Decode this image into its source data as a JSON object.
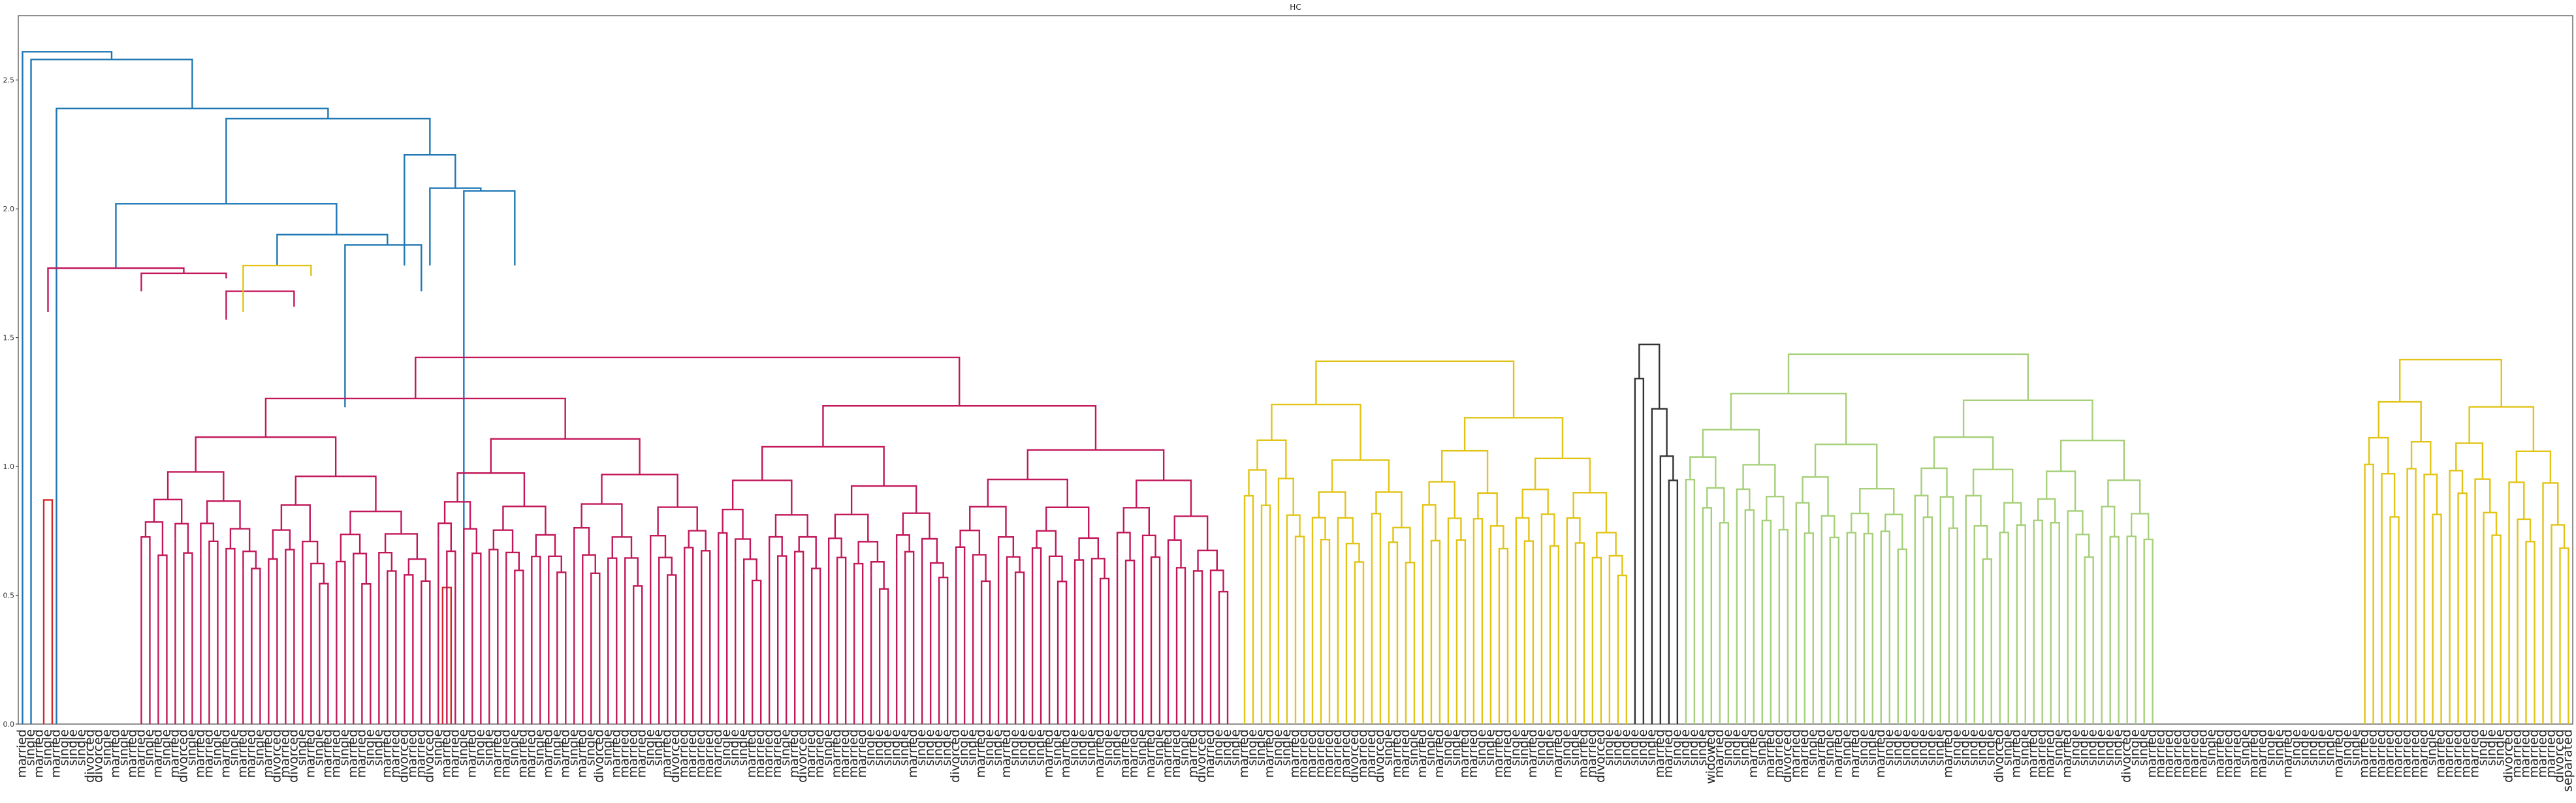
{
  "chart_data": {
    "type": "dendrogram",
    "title": "HC",
    "xlabel": "",
    "ylabel": "",
    "ylim": [
      0,
      2.75
    ],
    "yticks": [
      "0.0",
      "0.5",
      "1.0",
      "1.5",
      "2.0",
      "2.5"
    ],
    "grid": false,
    "cluster_colors": {
      "above_threshold": "#1f77b4",
      "red": "#d62728",
      "magenta": "#c2185b",
      "yellow": "#e2c415",
      "black": "#333333",
      "green": "#a6d07a",
      "cyan": "#8fd1e8"
    },
    "leaves": [
      "married",
      "single",
      "married",
      "single",
      "married",
      "single",
      "single",
      "single",
      "divorced",
      "divorced",
      "single",
      "married",
      "single",
      "married",
      "married",
      "single",
      "married",
      "single",
      "married",
      "divorced",
      "single",
      "married",
      "married",
      "single",
      "married",
      "single",
      "married",
      "married",
      "single",
      "married",
      "divorced",
      "married",
      "divorced",
      "single",
      "married",
      "single",
      "married",
      "married",
      "single",
      "married",
      "married",
      "single",
      "single",
      "married",
      "married",
      "divorced",
      "married",
      "married",
      "divorced",
      "single",
      "married",
      "married",
      "single",
      "married",
      "single",
      "single",
      "married",
      "married",
      "single",
      "married",
      "married",
      "single",
      "married",
      "single",
      "married",
      "single",
      "married",
      "single",
      "divorced",
      "single",
      "married",
      "married",
      "married",
      "married",
      "single",
      "single",
      "married",
      "divorced",
      "married",
      "married",
      "married",
      "married",
      "married",
      "single",
      "single",
      "single",
      "married",
      "married",
      "married",
      "married",
      "single",
      "married",
      "divorced",
      "married",
      "married",
      "single",
      "married",
      "married",
      "married",
      "married",
      "single",
      "single",
      "single",
      "single",
      "single",
      "married",
      "single",
      "single",
      "single",
      "single",
      "divorced",
      "single",
      "single",
      "married",
      "single",
      "single",
      "married",
      "single",
      "single",
      "single",
      "single",
      "married",
      "single",
      "married",
      "single",
      "single",
      "single",
      "married",
      "single",
      "single",
      "married",
      "married",
      "single",
      "married",
      "single",
      "married",
      "married",
      "single",
      "married",
      "divorced",
      "married",
      "single",
      "single",
      "single",
      "married",
      "single",
      "single",
      "married",
      "single",
      "single",
      "married",
      "married",
      "married",
      "married",
      "married",
      "married",
      "married",
      "divorced",
      "married",
      "married",
      "divorced",
      "single",
      "married",
      "married",
      "single",
      "married",
      "single",
      "married",
      "single",
      "single",
      "married",
      "married",
      "single",
      "single",
      "married",
      "married",
      "single",
      "single",
      "married",
      "single",
      "single",
      "married",
      "single",
      "single",
      "married",
      "married",
      "divorced",
      "single",
      "single",
      "single",
      "single",
      "single",
      "single",
      "married",
      "married",
      "single",
      "single",
      "single",
      "single",
      "widowed",
      "married",
      "single",
      "single",
      "single",
      "married",
      "single",
      "married",
      "married",
      "divorced",
      "married",
      "married",
      "single",
      "married",
      "single",
      "married",
      "single",
      "married",
      "single",
      "single",
      "married",
      "single",
      "single",
      "single",
      "single",
      "single",
      "single",
      "single",
      "married",
      "single",
      "single",
      "single",
      "single",
      "single",
      "divorced",
      "single",
      "married",
      "single",
      "married",
      "married",
      "married",
      "single",
      "married",
      "single",
      "single",
      "single",
      "single",
      "single",
      "single",
      "divorced",
      "single",
      "single",
      "married",
      "married",
      "married",
      "married",
      "married",
      "married",
      "married",
      "single",
      "married",
      "married",
      "married",
      "single",
      "married",
      "married",
      "single",
      "single",
      "married",
      "single",
      "single",
      "single",
      "single",
      "single",
      "married",
      "single",
      "single",
      "married",
      "married",
      "married",
      "married",
      "married",
      "married",
      "married",
      "married",
      "single",
      "married",
      "married",
      "married",
      "married",
      "married",
      "single",
      "single",
      "single",
      "divorced",
      "married",
      "married",
      "married",
      "married",
      "married",
      "divorced",
      "separated"
    ],
    "links": [
      {
        "a": 0,
        "b": 10.5,
        "h": 2.61,
        "ha": 0,
        "hb": 2.58,
        "c": "above_threshold"
      },
      {
        "a": 1,
        "b": 20,
        "h": 2.58,
        "ha": 0,
        "hb": 2.39,
        "c": "above_threshold"
      },
      {
        "a": 2.5,
        "b": 3.5,
        "h": 0.87,
        "ha": 0,
        "hb": 0,
        "c": "red"
      },
      {
        "a": 4,
        "b": 36,
        "h": 2.39,
        "ha": 0,
        "hb": 2.35,
        "c": "above_threshold"
      },
      {
        "a": 24,
        "b": 48,
        "h": 2.35,
        "ha": 2.02,
        "hb": 2.21,
        "c": "above_threshold"
      },
      {
        "a": 11,
        "b": 37,
        "h": 2.02,
        "ha": 1.77,
        "hb": 1.9,
        "c": "above_threshold"
      },
      {
        "a": 3,
        "b": 19,
        "h": 1.77,
        "ha": 1.6,
        "hb": 1.75,
        "c": "magenta"
      },
      {
        "a": 14,
        "b": 24,
        "h": 1.75,
        "ha": 1.68,
        "hb": 1.73,
        "c": "magenta"
      },
      {
        "a": 24,
        "b": 32,
        "h": 1.68,
        "ha": 1.57,
        "hb": 1.62,
        "c": "magenta"
      },
      {
        "a": 30,
        "b": 43,
        "h": 1.9,
        "ha": 1.78,
        "hb": 1.86,
        "c": "above_threshold"
      },
      {
        "a": 26,
        "b": 34,
        "h": 1.78,
        "ha": 1.6,
        "hb": 1.74,
        "c": "yellow"
      },
      {
        "a": 38,
        "b": 47,
        "h": 1.86,
        "ha": 1.23,
        "hb": 1.68,
        "c": "above_threshold"
      },
      {
        "a": 45,
        "b": 51,
        "h": 2.21,
        "ha": 1.78,
        "hb": 2.08,
        "c": "above_threshold"
      },
      {
        "a": 48,
        "b": 54,
        "h": 2.08,
        "ha": 1.78,
        "hb": 2.07,
        "c": "above_threshold"
      },
      {
        "a": 49.5,
        "b": 50.5,
        "h": 0.53,
        "ha": 0,
        "hb": 0,
        "c": "red"
      },
      {
        "a": 52,
        "b": 58,
        "h": 2.07,
        "ha": 0,
        "hb": 1.78,
        "c": "above_threshold"
      }
    ],
    "cluster_spans": [
      {
        "from": 14,
        "to": 142,
        "c": "magenta"
      },
      {
        "from": 144,
        "to": 189,
        "c": "yellow"
      },
      {
        "from": 190,
        "to": 195,
        "c": "black"
      },
      {
        "from": 196,
        "to": 251,
        "c": "green"
      },
      {
        "from": 276,
        "to": 300,
        "c": "yellow"
      }
    ]
  }
}
